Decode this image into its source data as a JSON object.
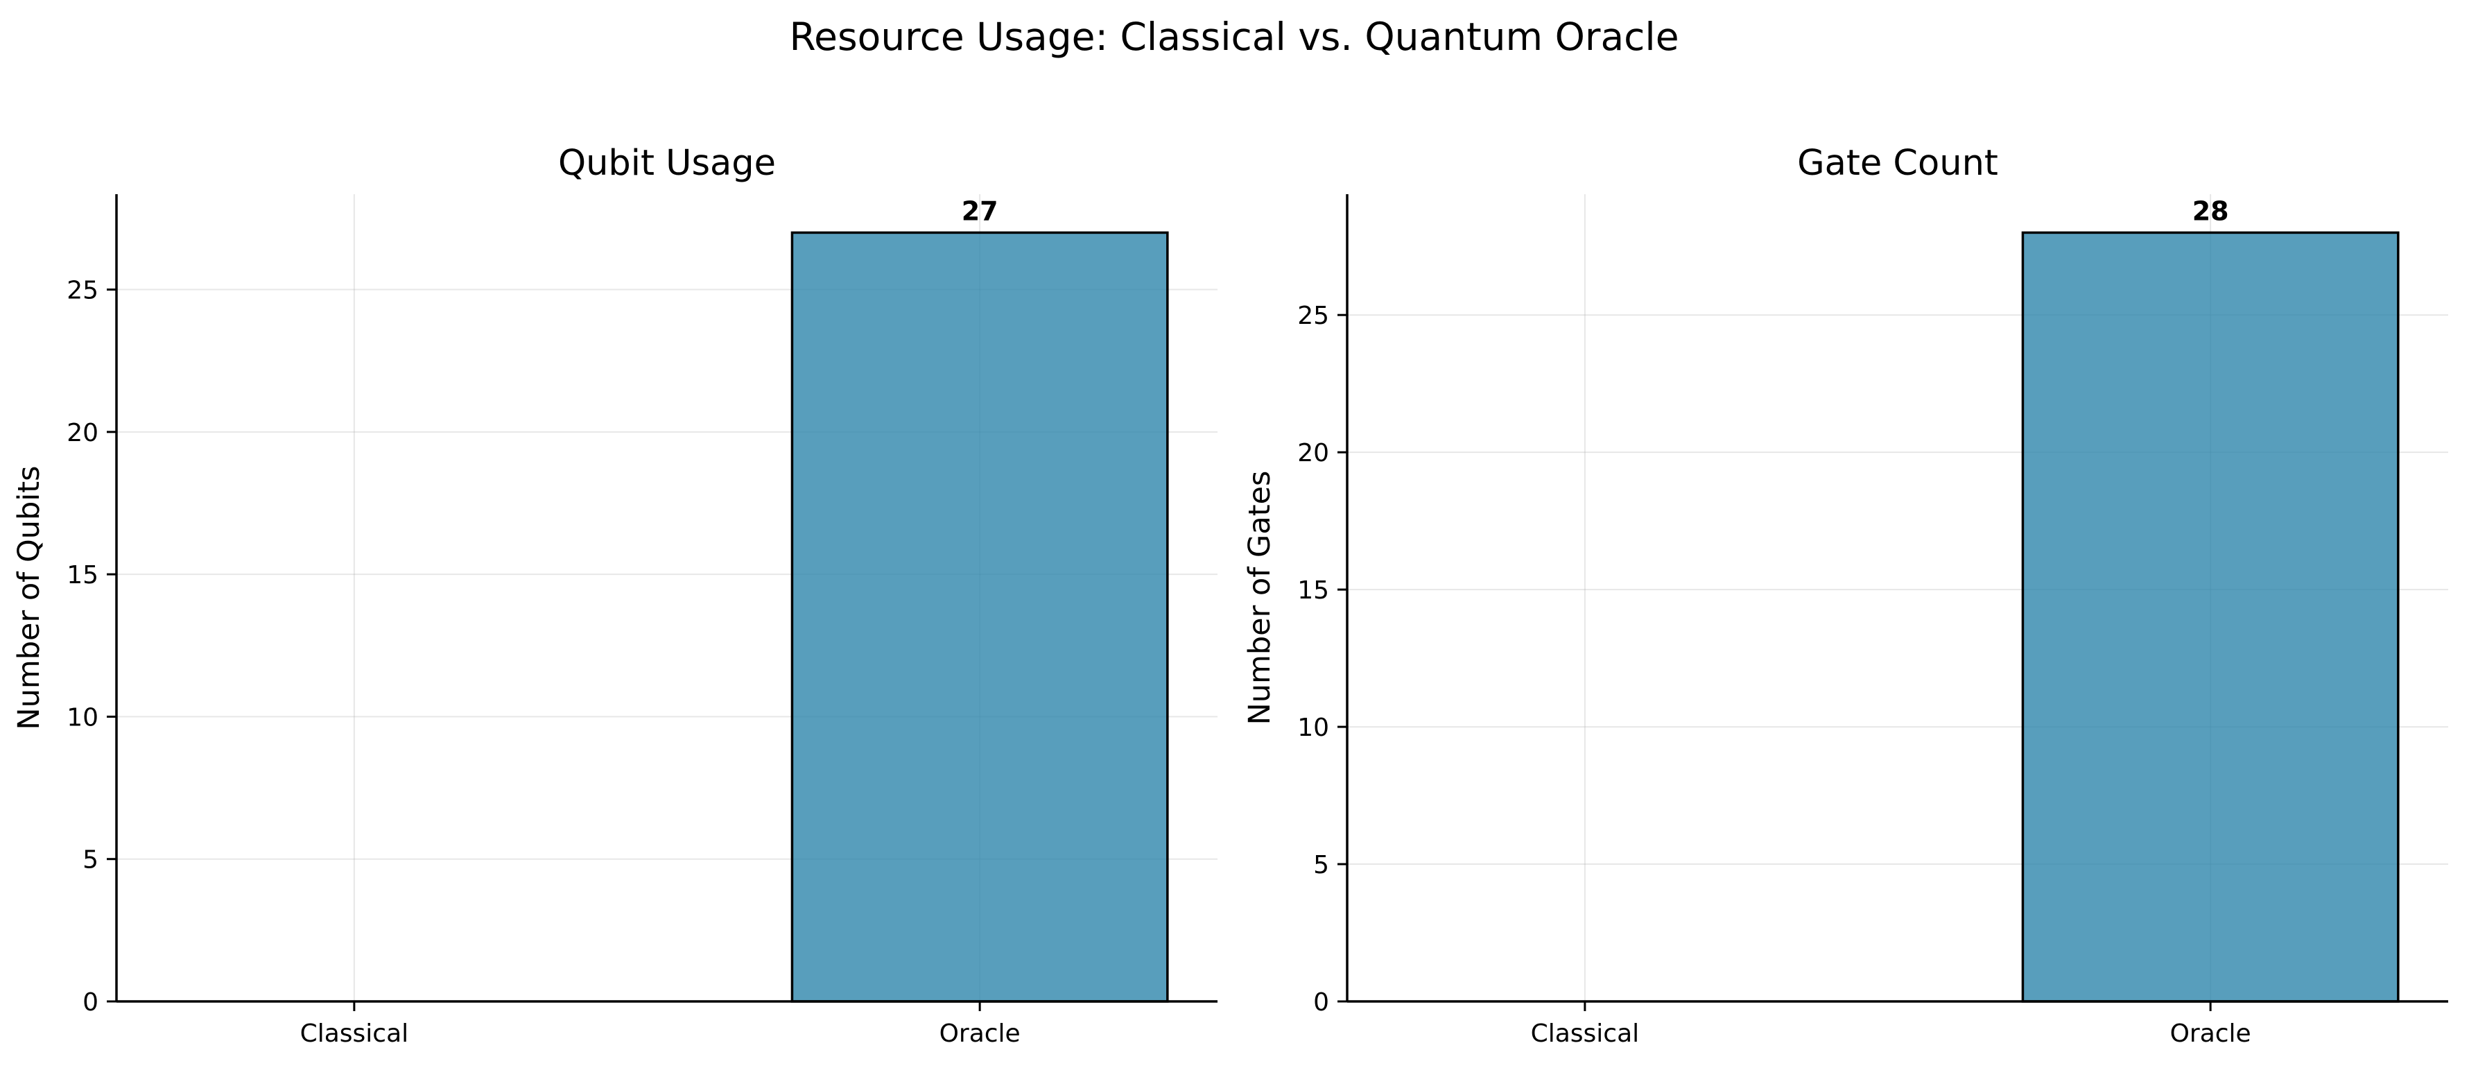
{
  "figure": {
    "title": "Resource Usage: Classical vs. Quantum Oracle"
  },
  "colors": {
    "bar_fill": "#2e86ab",
    "bar_alpha": 0.8,
    "bar_edge": "#000000",
    "grid": "#b0b0b0"
  },
  "chart_data": [
    {
      "type": "bar",
      "title": "Qubit Usage",
      "xlabel": "",
      "ylabel": "Number of Qubits",
      "categories": [
        "Classical",
        "Oracle"
      ],
      "values": [
        0,
        27
      ],
      "value_labels": [
        "",
        "27"
      ],
      "ylim": [
        0,
        28.35
      ],
      "yticks": [
        0,
        5,
        10,
        15,
        20,
        25
      ],
      "grid": true
    },
    {
      "type": "bar",
      "title": "Gate Count",
      "xlabel": "",
      "ylabel": "Number of Gates",
      "categories": [
        "Classical",
        "Oracle"
      ],
      "values": [
        0,
        28
      ],
      "value_labels": [
        "",
        "28"
      ],
      "ylim": [
        0,
        29.4
      ],
      "yticks": [
        0,
        5,
        10,
        15,
        20,
        25
      ],
      "grid": true
    }
  ]
}
